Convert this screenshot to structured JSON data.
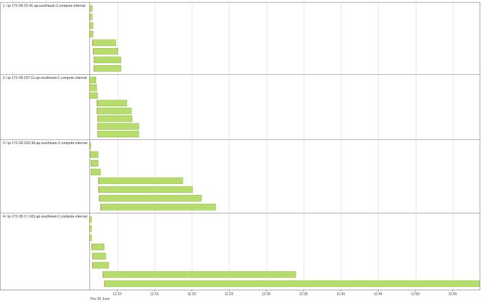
{
  "chart_data": {
    "type": "gantt",
    "date": "Thu 30 June",
    "x_range": [
      "11:06:16",
      "11:58:37"
    ],
    "x_ticks": [
      "11:10",
      "11:15",
      "11:20",
      "11:25",
      "11:30",
      "11:35",
      "11:40",
      "11:45",
      "11:50",
      "11:55"
    ],
    "grid": true,
    "colors": {
      "bar_fill": "#b5dc6c",
      "bar_edge": "#8fbf3f",
      "bar_marker": "#c9a07a"
    },
    "lanes": [
      {
        "label": "1 / ip-172-28-22-41.ap-southeast-2.compute.internal",
        "tasks": [
          {
            "start": "11:06:16",
            "end": "11:06:40"
          },
          {
            "start": "11:06:16",
            "end": "11:06:40"
          },
          {
            "start": "11:06:16",
            "end": "11:06:46"
          },
          {
            "start": "11:06:16",
            "end": "11:06:46"
          },
          {
            "start": "11:06:40",
            "end": "11:09:49"
          },
          {
            "start": "11:06:46",
            "end": "11:10:07"
          },
          {
            "start": "11:06:52",
            "end": "11:10:31"
          },
          {
            "start": "11:06:52",
            "end": "11:10:31"
          }
        ]
      },
      {
        "label": "2 / ip-172-28-207-11.ap-southeast-2.compute.internal",
        "tasks": [
          {
            "start": "11:06:16",
            "end": "11:07:10"
          },
          {
            "start": "11:06:16",
            "end": "11:07:16"
          },
          {
            "start": "11:06:16",
            "end": "11:07:22"
          },
          {
            "start": "11:07:16",
            "end": "11:11:19"
          },
          {
            "start": "11:07:16",
            "end": "11:11:55"
          },
          {
            "start": "11:07:22",
            "end": "11:12:01"
          },
          {
            "start": "11:07:22",
            "end": "11:12:55"
          },
          {
            "start": "11:07:22",
            "end": "11:12:55"
          }
        ]
      },
      {
        "label": "3 / ip-172-28-203-38.ap-southeast-2.compute.internal",
        "tasks": [
          {
            "start": "11:06:16",
            "end": "11:06:28"
          },
          {
            "start": "11:06:22",
            "end": "11:07:28"
          },
          {
            "start": "11:06:28",
            "end": "11:07:28"
          },
          {
            "start": "11:06:28",
            "end": "11:07:46"
          },
          {
            "start": "11:07:28",
            "end": "11:18:49"
          },
          {
            "start": "11:07:28",
            "end": "11:20:07"
          },
          {
            "start": "11:07:34",
            "end": "11:21:19"
          },
          {
            "start": "11:07:46",
            "end": "11:23:13"
          }
        ]
      },
      {
        "label": "4 / ip-172-28-17-165.ap-southeast-2.compute.internal",
        "tasks": [
          {
            "start": "11:06:16",
            "end": "11:06:34"
          },
          {
            "start": "11:06:16",
            "end": "11:06:34"
          },
          {
            "start": "11:06:16",
            "end": "11:06:34"
          },
          {
            "start": "11:06:34",
            "end": "11:08:16"
          },
          {
            "start": "11:06:40",
            "end": "11:08:28"
          },
          {
            "start": "11:06:40",
            "end": "11:08:52"
          },
          {
            "start": "11:08:04",
            "end": "11:33:58"
          },
          {
            "start": "11:08:16",
            "end": "11:58:37"
          }
        ]
      }
    ]
  }
}
